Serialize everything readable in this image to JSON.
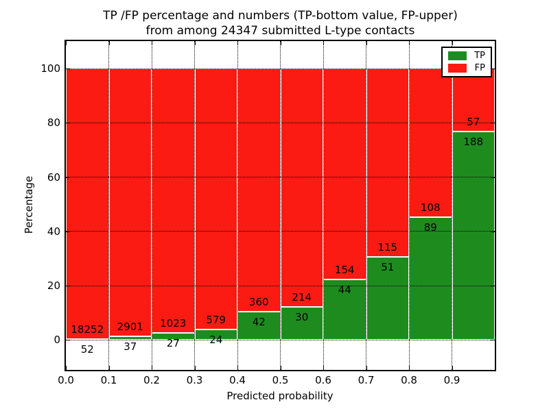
{
  "title": {
    "line1": "TP /FP percentage and numbers (TP-bottom value, FP-upper)",
    "line2": "from among 24347 submitted L-type contacts"
  },
  "axes": {
    "xlabel": "Predicted probability",
    "ylabel": "Percentage",
    "xtick_labels": [
      "0.0",
      "0.1",
      "0.2",
      "0.3",
      "0.4",
      "0.5",
      "0.6",
      "0.7",
      "0.8",
      "0.9"
    ],
    "ytick_values": [
      0,
      20,
      40,
      60,
      80,
      100
    ]
  },
  "legend": {
    "items": [
      {
        "label": "TP",
        "color": "#1e8b1e"
      },
      {
        "label": "FP",
        "color": "#fb1b12"
      }
    ]
  },
  "chart_data": {
    "type": "bar",
    "stacked": true,
    "units": "percent of bin total",
    "bin_starts": [
      0.0,
      0.1,
      0.2,
      0.3,
      0.4,
      0.5,
      0.6,
      0.7,
      0.8,
      0.9
    ],
    "bin_width": 0.1,
    "series": [
      {
        "name": "TP",
        "color": "#1e8b1e",
        "counts": [
          52,
          37,
          27,
          24,
          42,
          30,
          44,
          51,
          89,
          188
        ],
        "percent": [
          0.28,
          1.26,
          2.57,
          3.98,
          10.45,
          12.3,
          22.22,
          30.72,
          45.18,
          76.73
        ]
      },
      {
        "name": "FP",
        "color": "#fb1b12",
        "counts": [
          18252,
          2901,
          1023,
          579,
          360,
          214,
          154,
          115,
          108,
          57
        ],
        "percent": [
          99.72,
          98.74,
          97.43,
          96.02,
          89.55,
          87.7,
          77.78,
          69.28,
          54.82,
          23.27
        ]
      }
    ],
    "total_contacts": 24347,
    "title": "TP /FP percentage and numbers (TP-bottom value, FP-upper) from among 24347 submitted L-type contacts",
    "xlabel": "Predicted probability",
    "ylabel": "Percentage",
    "xlim": [
      0.0,
      1.0
    ],
    "ylim": [
      -11,
      110
    ],
    "grid": "dotted, drawn above bars",
    "bar_edge_color": "#ffffff",
    "legend_position": "upper right"
  }
}
